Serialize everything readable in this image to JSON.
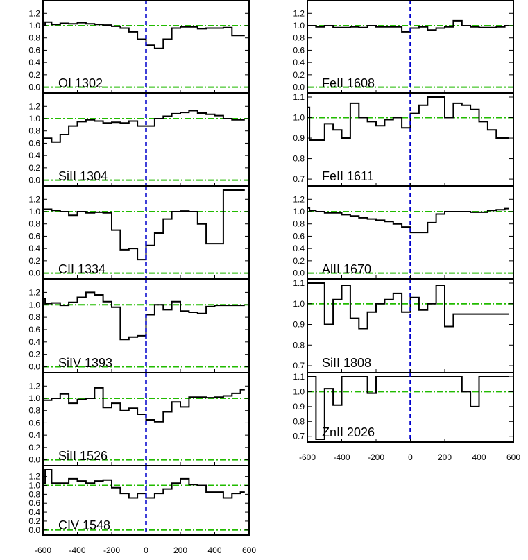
{
  "figure": {
    "colors": {
      "spectrum": "#000000",
      "continuum": "#22bb00",
      "velocity_zero": "#0000cc"
    }
  },
  "chart_data": [
    {
      "type": "line",
      "column": "left",
      "label": "OI 1302",
      "ylim": [
        -0.05,
        1.35
      ],
      "yticks": [
        "0.0",
        "0.2",
        "0.4",
        "0.6",
        "0.8",
        "1.0",
        "1.2"
      ],
      "xlim": [
        -600,
        600
      ],
      "x": [
        -600,
        -575,
        -525,
        -475,
        -425,
        -375,
        -325,
        -275,
        -225,
        -175,
        -125,
        -75,
        -25,
        25,
        75,
        125,
        175,
        225,
        275,
        325,
        375,
        425,
        475,
        525,
        575
      ],
      "y": [
        1.0,
        1.06,
        1.02,
        1.04,
        1.03,
        1.05,
        1.03,
        1.02,
        1.01,
        0.99,
        0.96,
        0.9,
        0.78,
        0.68,
        0.63,
        0.78,
        0.96,
        0.98,
        0.98,
        0.95,
        0.96,
        0.96,
        0.97,
        0.84,
        0.84
      ],
      "continuum_level": 1.0
    },
    {
      "type": "line",
      "column": "left",
      "label": "SiII 1304",
      "ylim": [
        -0.05,
        1.35
      ],
      "yticks": [
        "0.0",
        "0.2",
        "0.4",
        "0.6",
        "0.8",
        "1.0",
        "1.2"
      ],
      "xlim": [
        -600,
        600
      ],
      "x": [
        -600,
        -575,
        -525,
        -475,
        -425,
        -375,
        -325,
        -275,
        -225,
        -175,
        -125,
        -75,
        -25,
        25,
        75,
        125,
        175,
        225,
        275,
        325,
        375,
        425,
        475,
        525,
        575
      ],
      "y": [
        0.68,
        0.68,
        0.62,
        0.74,
        0.88,
        0.95,
        0.98,
        0.96,
        0.93,
        0.94,
        0.93,
        0.96,
        0.88,
        0.88,
        1.0,
        1.04,
        1.08,
        1.1,
        1.13,
        1.09,
        1.07,
        1.05,
        1.0,
        0.98,
        0.98
      ],
      "continuum_level": 1.0
    },
    {
      "type": "line",
      "column": "left",
      "label": "CII 1334",
      "ylim": [
        -0.05,
        1.35
      ],
      "yticks": [
        "0.0",
        "0.2",
        "0.4",
        "0.6",
        "0.8",
        "1.0",
        "1.2"
      ],
      "xlim": [
        -600,
        600
      ],
      "x": [
        -600,
        -575,
        -525,
        -475,
        -425,
        -375,
        -325,
        -275,
        -225,
        -175,
        -125,
        -75,
        -25,
        25,
        75,
        125,
        175,
        225,
        275,
        325,
        375,
        425,
        475,
        525,
        575
      ],
      "y": [
        1.04,
        1.04,
        1.02,
        1.0,
        0.94,
        1.0,
        0.98,
        0.99,
        0.98,
        0.7,
        0.38,
        0.4,
        0.22,
        0.45,
        0.65,
        0.88,
        1.0,
        1.01,
        1.0,
        0.8,
        0.48,
        0.48,
        1.35,
        1.35,
        1.35
      ],
      "continuum_level": 1.0
    },
    {
      "type": "line",
      "column": "left",
      "label": "SiIV 1393",
      "ylim": [
        -0.05,
        1.35
      ],
      "yticks": [
        "0.0",
        "0.2",
        "0.4",
        "0.6",
        "0.8",
        "1.0",
        "1.2"
      ],
      "xlim": [
        -600,
        600
      ],
      "x": [
        -600,
        -575,
        -525,
        -475,
        -425,
        -375,
        -325,
        -275,
        -225,
        -175,
        -125,
        -75,
        -25,
        25,
        75,
        125,
        175,
        225,
        275,
        325,
        375,
        425,
        475,
        525,
        575
      ],
      "y": [
        1.1,
        1.02,
        1.03,
        0.99,
        1.04,
        1.12,
        1.2,
        1.16,
        1.05,
        0.96,
        0.44,
        0.48,
        0.5,
        0.84,
        1.0,
        0.92,
        1.05,
        0.9,
        0.88,
        0.86,
        0.97,
        0.99,
        0.99,
        0.99,
        0.99
      ],
      "continuum_level": 1.0
    },
    {
      "type": "line",
      "column": "left",
      "label": "SiII 1526",
      "ylim": [
        -0.05,
        1.35
      ],
      "yticks": [
        "0.0",
        "0.2",
        "0.4",
        "0.6",
        "0.8",
        "1.0",
        "1.2"
      ],
      "xlim": [
        -600,
        600
      ],
      "x": [
        -600,
        -575,
        -525,
        -475,
        -425,
        -375,
        -325,
        -275,
        -225,
        -175,
        -125,
        -75,
        -25,
        25,
        75,
        125,
        175,
        225,
        275,
        325,
        375,
        425,
        475,
        525,
        575
      ],
      "y": [
        0.97,
        0.97,
        1.0,
        1.07,
        0.92,
        0.98,
        1.0,
        1.17,
        0.85,
        0.92,
        0.8,
        0.84,
        0.74,
        0.65,
        0.62,
        0.78,
        0.94,
        0.86,
        1.02,
        1.02,
        1.01,
        1.02,
        1.04,
        1.08,
        1.14
      ],
      "continuum_level": 1.0
    },
    {
      "type": "line",
      "column": "left",
      "label": "CIV 1548",
      "ylim": [
        -0.05,
        1.35
      ],
      "yticks": [
        "0.0",
        "0.2",
        "0.4",
        "0.6",
        "0.8",
        "1.0",
        "1.2"
      ],
      "xlim": [
        -600,
        600
      ],
      "x": [
        -600,
        -575,
        -525,
        -475,
        -425,
        -375,
        -325,
        -275,
        -225,
        -175,
        -125,
        -75,
        -25,
        25,
        75,
        125,
        175,
        225,
        275,
        325,
        375,
        425,
        475,
        525,
        575
      ],
      "y": [
        1.05,
        1.35,
        1.05,
        1.05,
        1.15,
        1.1,
        1.05,
        1.1,
        1.12,
        0.95,
        0.82,
        0.72,
        0.82,
        0.72,
        0.82,
        0.92,
        1.05,
        1.15,
        1.02,
        1.0,
        0.85,
        0.85,
        0.72,
        0.82,
        0.85
      ],
      "continuum_level": 1.0
    },
    {
      "type": "line",
      "column": "right",
      "label": "FeII 1608",
      "ylim": [
        -0.05,
        1.35
      ],
      "yticks": [
        "0.0",
        "0.2",
        "0.4",
        "0.6",
        "0.8",
        "1.0",
        "1.2"
      ],
      "xlim": [
        -600,
        600
      ],
      "x": [
        -600,
        -575,
        -525,
        -475,
        -425,
        -375,
        -325,
        -275,
        -225,
        -175,
        -125,
        -75,
        -25,
        25,
        75,
        125,
        175,
        225,
        275,
        325,
        375,
        425,
        475,
        525,
        575
      ],
      "y": [
        1.0,
        1.0,
        0.98,
        1.0,
        0.97,
        0.97,
        0.98,
        0.97,
        1.0,
        0.98,
        0.98,
        0.98,
        0.9,
        0.96,
        0.98,
        0.93,
        0.96,
        0.98,
        1.08,
        1.0,
        0.98,
        0.97,
        0.97,
        0.98,
        1.0
      ],
      "continuum_level": 1.0
    },
    {
      "type": "line",
      "column": "right",
      "label": "FeII 1611",
      "ylim": [
        0.68,
        1.1
      ],
      "yticks": [
        "0.7",
        "0.8",
        "0.9",
        "1.0",
        "1.1"
      ],
      "xlim": [
        -600,
        600
      ],
      "x": [
        -600,
        -575,
        -525,
        -475,
        -425,
        -375,
        -325,
        -275,
        -225,
        -175,
        -125,
        -75,
        -25,
        25,
        75,
        125,
        175,
        225,
        275,
        325,
        375,
        425,
        475,
        525,
        575
      ],
      "y": [
        1.05,
        0.89,
        0.89,
        0.97,
        0.94,
        0.9,
        1.07,
        1.0,
        0.98,
        0.96,
        0.99,
        1.0,
        0.95,
        1.02,
        1.06,
        1.1,
        1.1,
        1.0,
        1.07,
        1.06,
        1.04,
        0.98,
        0.94,
        0.9,
        0.9
      ],
      "continuum_level": 1.0
    },
    {
      "type": "line",
      "column": "right",
      "label": "AlII 1670",
      "ylim": [
        -0.05,
        1.35
      ],
      "yticks": [
        "0.0",
        "0.2",
        "0.4",
        "0.6",
        "0.8",
        "1.0",
        "1.2"
      ],
      "xlim": [
        -600,
        600
      ],
      "x": [
        -600,
        -575,
        -525,
        -475,
        -425,
        -375,
        -325,
        -275,
        -225,
        -175,
        -125,
        -75,
        -25,
        25,
        75,
        125,
        175,
        225,
        275,
        325,
        375,
        425,
        475,
        525,
        575
      ],
      "y": [
        1.06,
        1.02,
        1.0,
        0.98,
        0.98,
        0.95,
        0.93,
        0.9,
        0.88,
        0.86,
        0.84,
        0.8,
        0.75,
        0.66,
        0.66,
        0.82,
        0.96,
        1.0,
        1.0,
        1.0,
        0.99,
        0.99,
        1.02,
        1.03,
        1.05
      ],
      "continuum_level": 1.0
    },
    {
      "type": "line",
      "column": "right",
      "label": "SiII 1808",
      "ylim": [
        0.68,
        1.1
      ],
      "yticks": [
        "0.7",
        "0.8",
        "0.9",
        "1.0",
        "1.1"
      ],
      "xlim": [
        -600,
        600
      ],
      "x": [
        -600,
        -575,
        -525,
        -475,
        -425,
        -375,
        -325,
        -275,
        -225,
        -175,
        -125,
        -75,
        -25,
        25,
        75,
        125,
        175,
        225,
        275,
        325,
        375,
        425,
        475,
        525,
        575
      ],
      "y": [
        1.1,
        1.1,
        1.1,
        0.9,
        1.02,
        1.09,
        0.93,
        0.88,
        0.96,
        1.0,
        1.02,
        1.05,
        0.96,
        1.03,
        0.97,
        1.0,
        1.09,
        0.89,
        0.95,
        0.95,
        0.95,
        0.95,
        0.95,
        0.95,
        0.95
      ],
      "continuum_level": 1.0
    },
    {
      "type": "line",
      "column": "right",
      "label": "ZnII 2026",
      "ylim": [
        0.68,
        1.1
      ],
      "yticks": [
        "0.7",
        "0.8",
        "0.9",
        "1.0",
        "1.1"
      ],
      "xlim": [
        -600,
        600
      ],
      "x": [
        -600,
        -575,
        -525,
        -475,
        -425,
        -375,
        -325,
        -275,
        -225,
        -175,
        -125,
        -75,
        -25,
        25,
        75,
        125,
        175,
        225,
        275,
        325,
        375,
        425,
        475,
        525,
        575
      ],
      "y": [
        1.1,
        1.1,
        0.65,
        1.02,
        0.91,
        1.1,
        1.1,
        1.1,
        0.99,
        1.1,
        1.1,
        1.1,
        1.1,
        1.1,
        1.1,
        1.1,
        1.1,
        1.1,
        1.1,
        1.0,
        0.9,
        1.1,
        1.1,
        1.1,
        1.1
      ],
      "continuum_level": 1.0
    }
  ],
  "axes": {
    "left_bottom_ticks": [
      "-600",
      "-400",
      "-200",
      "0",
      "200",
      "400",
      "600"
    ],
    "right_bottom_ticks": [
      "-600",
      "-400",
      "-200",
      "0",
      "200",
      "400",
      "600"
    ]
  }
}
